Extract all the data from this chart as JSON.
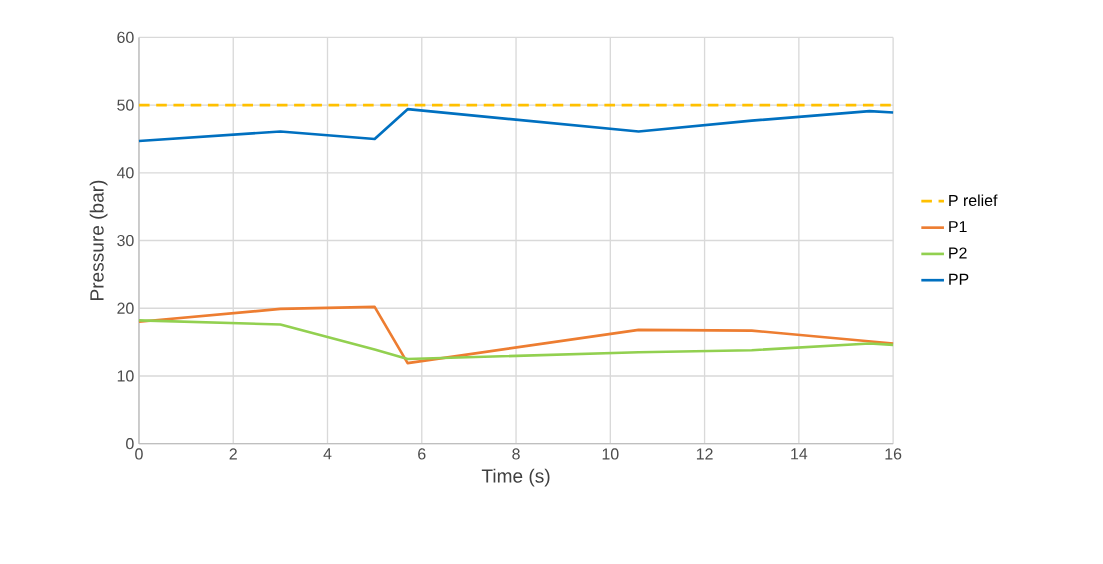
{
  "chart_data": {
    "type": "line",
    "xlabel": "Time (s)",
    "ylabel": "Pressure (bar)",
    "xlim": [
      0,
      16
    ],
    "xticks": [
      0,
      2,
      4,
      6,
      8,
      10,
      12,
      14,
      16
    ],
    "ylim": [
      0,
      60
    ],
    "yticks": [
      0,
      10,
      20,
      30,
      40,
      50,
      60
    ],
    "grid": true,
    "legend": "right",
    "marker": "none",
    "series": [
      {
        "name": "P relief",
        "color": "#ffc000",
        "line_style": "dashed",
        "x": [
          0,
          16
        ],
        "values": [
          50,
          50
        ]
      },
      {
        "name": "P1",
        "color": "#ed7d31",
        "x": [
          0,
          3,
          5,
          5.7,
          10.6,
          13,
          16
        ],
        "values": [
          18.0,
          19.9,
          20.2,
          11.9,
          16.8,
          16.7,
          14.8
        ]
      },
      {
        "name": "P2",
        "color": "#92d050",
        "x": [
          0,
          3,
          5,
          5.7,
          10.6,
          13,
          15.5,
          16
        ],
        "values": [
          18.2,
          17.6,
          13.9,
          12.5,
          13.5,
          13.8,
          14.8,
          14.6
        ]
      },
      {
        "name": "PP",
        "color": "#0070c0",
        "x": [
          0,
          3,
          5,
          5.7,
          10.6,
          13,
          15.5,
          16
        ],
        "values": [
          44.7,
          46.1,
          45.0,
          49.4,
          46.1,
          47.7,
          49.1,
          48.9
        ]
      }
    ]
  }
}
